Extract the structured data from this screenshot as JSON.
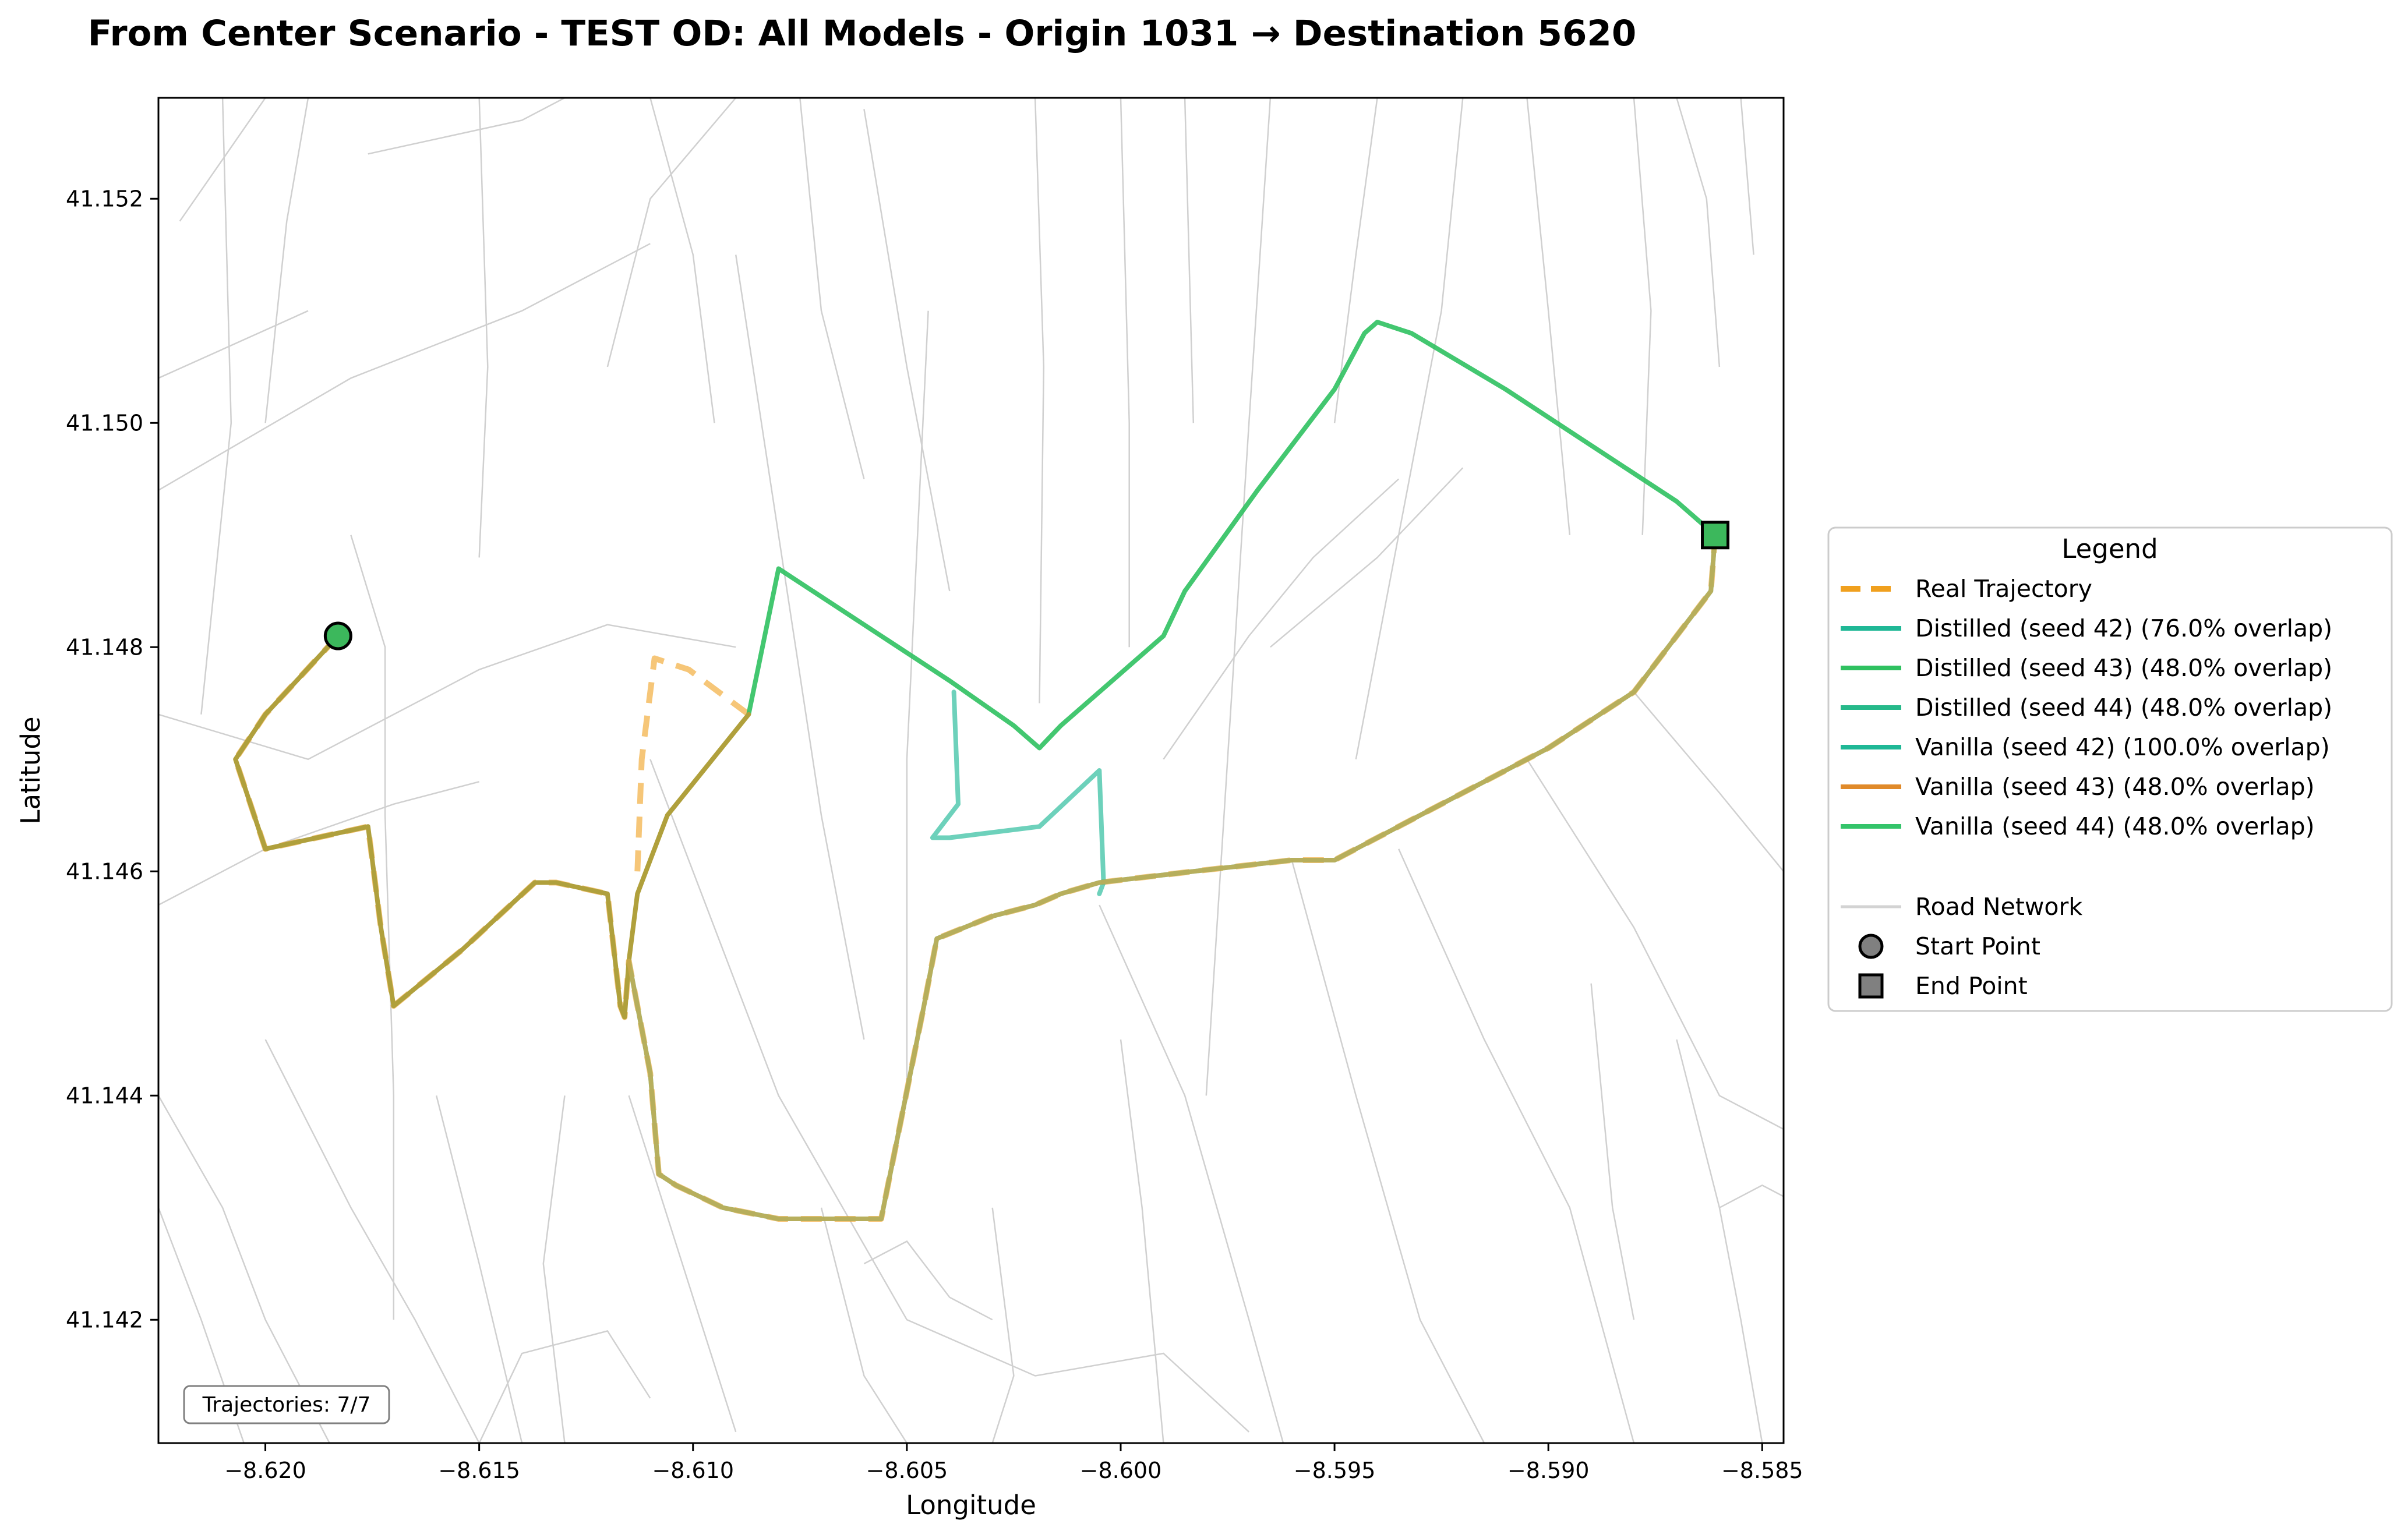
{
  "chart_data": {
    "type": "line",
    "title": "From Center Scenario - TEST OD: All Models - Origin 1031 → Destination 5620",
    "xlabel": "Longitude",
    "ylabel": "Latitude",
    "xlim": [
      -8.6225,
      -8.5845
    ],
    "ylim": [
      41.1409,
      41.1529
    ],
    "xticks": [
      -8.62,
      -8.615,
      -8.61,
      -8.605,
      -8.6,
      -8.595,
      -8.59,
      -8.585
    ],
    "xtick_labels": [
      "−8.620",
      "−8.615",
      "−8.610",
      "−8.605",
      "−8.600",
      "−8.595",
      "−8.590",
      "−8.585"
    ],
    "yticks": [
      41.142,
      41.144,
      41.146,
      41.148,
      41.15,
      41.152
    ],
    "ytick_labels": [
      "41.142",
      "41.144",
      "41.146",
      "41.148",
      "41.150",
      "41.152"
    ],
    "grid": false,
    "legend": {
      "title": "Legend",
      "placement": "right-outside",
      "entries": [
        {
          "label": "Real Trajectory",
          "color": "#f0a01e",
          "style": "dashed"
        },
        {
          "label": "Distilled (seed 42) (76.0% overlap)",
          "color": "#1fb896",
          "style": "solid"
        },
        {
          "label": "Distilled (seed 43) (48.0% overlap)",
          "color": "#2fc160",
          "style": "solid"
        },
        {
          "label": "Distilled (seed 44) (48.0% overlap)",
          "color": "#26b98a",
          "style": "solid"
        },
        {
          "label": "Vanilla (seed 42) (100.0% overlap)",
          "color": "#1fb896",
          "style": "solid"
        },
        {
          "label": "Vanilla (seed 43) (48.0% overlap)",
          "color": "#e08a2a",
          "style": "solid"
        },
        {
          "label": "Vanilla (seed 44) (48.0% overlap)",
          "color": "#34c46a",
          "style": "solid"
        },
        {
          "label": "Road Network",
          "color": "#d3d3d3",
          "style": "road"
        },
        {
          "label": "Start Point",
          "color": "#808080",
          "style": "circle"
        },
        {
          "label": "End Point",
          "color": "#808080",
          "style": "square"
        }
      ]
    },
    "annotation": "Trajectories: 7/7",
    "start_point": {
      "x": -8.6183,
      "y": 41.1481,
      "color": "#3cb85c"
    },
    "end_point": {
      "x": -8.5861,
      "y": 41.149,
      "color": "#3cb85c"
    },
    "series": [
      {
        "name": "Real Trajectory",
        "color": "#f0a01e",
        "style": "dashed",
        "width": 10,
        "opacity": 0.6,
        "x": [
          -8.6183,
          -8.62,
          -8.6207,
          -8.62,
          -8.6176,
          -8.6173,
          -8.617,
          -8.6154,
          -8.6137,
          -8.6132,
          -8.612,
          -8.6117,
          -8.6116,
          -8.6115,
          -8.611,
          -8.6108,
          -8.6104,
          -8.6093,
          -8.608,
          -8.6074,
          -8.6056,
          -8.6046,
          -8.6043,
          -8.603,
          -8.602,
          -8.6014,
          -8.6005,
          -8.5983,
          -8.596,
          -8.595,
          -8.594,
          -8.592,
          -8.59,
          -8.588,
          -8.5862,
          -8.5861
        ],
        "y": [
          41.1481,
          41.1474,
          41.147,
          41.1462,
          41.1464,
          41.1455,
          41.1448,
          41.1453,
          41.1459,
          41.1459,
          41.1458,
          41.1448,
          41.1447,
          41.1452,
          41.1442,
          41.1433,
          41.1432,
          41.143,
          41.1429,
          41.1429,
          41.1429,
          41.1448,
          41.1454,
          41.1456,
          41.1457,
          41.1458,
          41.1459,
          41.146,
          41.1461,
          41.1461,
          41.1463,
          41.1467,
          41.1471,
          41.1476,
          41.1485,
          41.149
        ]
      },
      {
        "name": "Real Trajectory (detour)",
        "color": "#f0a01e",
        "style": "dashed",
        "width": 10,
        "opacity": 0.6,
        "x": [
          -8.6113,
          -8.6112,
          -8.6109,
          -8.6101,
          -8.6087
        ],
        "y": [
          41.146,
          41.147,
          41.1479,
          41.1478,
          41.1474
        ]
      },
      {
        "name": "Distilled (seed 42) (76.0% overlap)",
        "color": "#1fb896",
        "style": "solid",
        "width": 8,
        "opacity": 0.65,
        "x": [
          -8.6039,
          -8.6038,
          -8.6042,
          -8.6044,
          -8.604,
          -8.6019,
          -8.6005,
          -8.6004,
          -8.6005
        ],
        "y": [
          41.1476,
          41.1466,
          41.1464,
          41.1463,
          41.1463,
          41.1464,
          41.1469,
          41.1459,
          41.1458
        ]
      },
      {
        "name": "Distilled (seed 43) (48.0% overlap)",
        "color": "#2fc160",
        "style": "solid",
        "width": 8,
        "opacity": 0.9,
        "x": [
          -8.6087,
          -8.608,
          -8.606,
          -8.604,
          -8.6025,
          -8.6019,
          -8.6014,
          -8.599,
          -8.5985,
          -8.5968,
          -8.595,
          -8.5943,
          -8.594,
          -8.5932,
          -8.591,
          -8.589,
          -8.587,
          -8.5861
        ],
        "y": [
          41.1474,
          41.1487,
          41.1482,
          41.1477,
          41.1473,
          41.1471,
          41.1473,
          41.1481,
          41.1485,
          41.1494,
          41.1503,
          41.1508,
          41.1509,
          41.1508,
          41.1503,
          41.1498,
          41.1493,
          41.149
        ]
      },
      {
        "name": "Vanilla (seed 42) (100.0% overlap)",
        "color": "#3fd0c0",
        "style": "solid",
        "width": 8,
        "opacity": 0.9,
        "x": [
          -8.6115,
          -8.611,
          -8.6108,
          -8.6104,
          -8.6093,
          -8.608,
          -8.6074,
          -8.6056,
          -8.6046,
          -8.6043,
          -8.603,
          -8.602,
          -8.6014,
          -8.6005,
          -8.5983,
          -8.596,
          -8.595,
          -8.594,
          -8.592,
          -8.59,
          -8.588,
          -8.5862,
          -8.5861
        ],
        "y": [
          41.1452,
          41.1442,
          41.1433,
          41.1432,
          41.143,
          41.1429,
          41.1429,
          41.1429,
          41.1448,
          41.1454,
          41.1456,
          41.1457,
          41.1458,
          41.1459,
          41.146,
          41.1461,
          41.1461,
          41.1463,
          41.1467,
          41.1471,
          41.1476,
          41.1485,
          41.149
        ]
      },
      {
        "name": "Vanilla (seed 43) (48.0% overlap)",
        "color": "#b0a03c",
        "style": "solid",
        "width": 8,
        "opacity": 1,
        "x": [
          -8.6183,
          -8.62,
          -8.6207,
          -8.62,
          -8.6176,
          -8.6173,
          -8.617,
          -8.6154,
          -8.6137,
          -8.6132,
          -8.612,
          -8.6117,
          -8.6116,
          -8.6115,
          -8.6113,
          -8.611,
          -8.6106,
          -8.6087
        ],
        "y": [
          41.1481,
          41.1474,
          41.147,
          41.1462,
          41.1464,
          41.1455,
          41.1448,
          41.1453,
          41.1459,
          41.1459,
          41.1458,
          41.1448,
          41.1447,
          41.1452,
          41.1458,
          41.1461,
          41.1465,
          41.1474
        ]
      },
      {
        "name": "Vanilla (seed 43) overlay",
        "color": "#c9a84a",
        "style": "solid",
        "width": 8,
        "opacity": 0.85,
        "x": [
          -8.6115,
          -8.611,
          -8.6108,
          -8.6104,
          -8.6093,
          -8.608,
          -8.6074,
          -8.6056,
          -8.6046,
          -8.6043,
          -8.603,
          -8.602,
          -8.6014,
          -8.6005,
          -8.5983,
          -8.596,
          -8.595,
          -8.594,
          -8.592,
          -8.59,
          -8.588,
          -8.5862,
          -8.5861
        ],
        "y": [
          41.1452,
          41.1442,
          41.1433,
          41.1432,
          41.143,
          41.1429,
          41.1429,
          41.1429,
          41.1448,
          41.1454,
          41.1456,
          41.1457,
          41.1458,
          41.1459,
          41.146,
          41.1461,
          41.1461,
          41.1463,
          41.1467,
          41.1471,
          41.1476,
          41.1485,
          41.149
        ]
      }
    ],
    "roads": [
      [
        [
          -8.6225,
          41.1474
        ],
        [
          -8.619,
          41.147
        ],
        [
          -8.615,
          41.1478
        ],
        [
          -8.612,
          41.1482
        ],
        [
          -8.609,
          41.148
        ]
      ],
      [
        [
          -8.6225,
          41.1457
        ],
        [
          -8.62,
          41.1462
        ],
        [
          -8.617,
          41.1466
        ],
        [
          -8.615,
          41.1468
        ]
      ],
      [
        [
          -8.6225,
          41.1494
        ],
        [
          -8.618,
          41.1504
        ],
        [
          -8.614,
          41.151
        ],
        [
          -8.611,
          41.1516
        ]
      ],
      [
        [
          -8.6225,
          41.1504
        ],
        [
          -8.619,
          41.151
        ]
      ],
      [
        [
          -8.622,
          41.1518
        ],
        [
          -8.62,
          41.1529
        ]
      ],
      [
        [
          -8.621,
          41.1529
        ],
        [
          -8.6208,
          41.15
        ],
        [
          -8.6215,
          41.1474
        ]
      ],
      [
        [
          -8.619,
          41.1529
        ],
        [
          -8.6195,
          41.1518
        ],
        [
          -8.62,
          41.15
        ]
      ],
      [
        [
          -8.618,
          41.149
        ],
        [
          -8.6172,
          41.148
        ],
        [
          -8.6172,
          41.1465
        ],
        [
          -8.617,
          41.144
        ],
        [
          -8.617,
          41.142
        ]
      ],
      [
        [
          -8.615,
          41.1529
        ],
        [
          -8.6148,
          41.1505
        ],
        [
          -8.615,
          41.1488
        ]
      ],
      [
        [
          -8.613,
          41.1529
        ],
        [
          -8.614,
          41.1527
        ],
        [
          -8.6176,
          41.1524
        ]
      ],
      [
        [
          -8.612,
          41.1505
        ],
        [
          -8.611,
          41.152
        ],
        [
          -8.609,
          41.1529
        ]
      ],
      [
        [
          -8.609,
          41.1515
        ],
        [
          -8.608,
          41.149
        ],
        [
          -8.607,
          41.1465
        ],
        [
          -8.606,
          41.1445
        ]
      ],
      [
        [
          -8.611,
          41.1529
        ],
        [
          -8.61,
          41.1515
        ],
        [
          -8.6095,
          41.15
        ]
      ],
      [
        [
          -8.6075,
          41.1529
        ],
        [
          -8.607,
          41.151
        ],
        [
          -8.606,
          41.1495
        ]
      ],
      [
        [
          -8.606,
          41.1528
        ],
        [
          -8.605,
          41.1505
        ],
        [
          -8.604,
          41.1485
        ]
      ],
      [
        [
          -8.6045,
          41.151
        ],
        [
          -8.605,
          41.147
        ],
        [
          -8.605,
          41.144
        ]
      ],
      [
        [
          -8.602,
          41.1529
        ],
        [
          -8.6018,
          41.1505
        ],
        [
          -8.6019,
          41.1475
        ]
      ],
      [
        [
          -8.6,
          41.1529
        ],
        [
          -8.5998,
          41.15
        ],
        [
          -8.5998,
          41.148
        ]
      ],
      [
        [
          -8.5985,
          41.1529
        ],
        [
          -8.5983,
          41.15
        ]
      ],
      [
        [
          -8.5965,
          41.1529
        ],
        [
          -8.597,
          41.15
        ],
        [
          -8.5975,
          41.147
        ],
        [
          -8.598,
          41.144
        ]
      ],
      [
        [
          -8.594,
          41.1529
        ],
        [
          -8.5945,
          41.1515
        ],
        [
          -8.595,
          41.15
        ]
      ],
      [
        [
          -8.592,
          41.1529
        ],
        [
          -8.5925,
          41.151
        ],
        [
          -8.5935,
          41.149
        ],
        [
          -8.5945,
          41.147
        ]
      ],
      [
        [
          -8.5905,
          41.1529
        ],
        [
          -8.59,
          41.151
        ],
        [
          -8.5895,
          41.149
        ]
      ],
      [
        [
          -8.588,
          41.1529
        ],
        [
          -8.5876,
          41.151
        ],
        [
          -8.5878,
          41.149
        ]
      ],
      [
        [
          -8.587,
          41.1529
        ],
        [
          -8.5863,
          41.152
        ],
        [
          -8.586,
          41.1505
        ]
      ],
      [
        [
          -8.5855,
          41.1529
        ],
        [
          -8.5852,
          41.1515
        ]
      ],
      [
        [
          -8.599,
          41.147
        ],
        [
          -8.597,
          41.1481
        ],
        [
          -8.5955,
          41.1488
        ],
        [
          -8.5935,
          41.1495
        ]
      ],
      [
        [
          -8.5965,
          41.148
        ],
        [
          -8.594,
          41.1488
        ],
        [
          -8.592,
          41.1496
        ]
      ],
      [
        [
          -8.6225,
          41.144
        ],
        [
          -8.621,
          41.143
        ],
        [
          -8.62,
          41.142
        ],
        [
          -8.6185,
          41.1409
        ]
      ],
      [
        [
          -8.62,
          41.1445
        ],
        [
          -8.618,
          41.143
        ],
        [
          -8.6165,
          41.142
        ],
        [
          -8.615,
          41.1409
        ]
      ],
      [
        [
          -8.616,
          41.144
        ],
        [
          -8.615,
          41.1425
        ],
        [
          -8.614,
          41.1409
        ]
      ],
      [
        [
          -8.613,
          41.144
        ],
        [
          -8.6135,
          41.1425
        ],
        [
          -8.613,
          41.1409
        ]
      ],
      [
        [
          -8.6115,
          41.144
        ],
        [
          -8.609,
          41.141
        ]
      ],
      [
        [
          -8.611,
          41.147
        ],
        [
          -8.608,
          41.144
        ],
        [
          -8.605,
          41.142
        ],
        [
          -8.602,
          41.1415
        ],
        [
          -8.599,
          41.1417
        ],
        [
          -8.597,
          41.141
        ]
      ],
      [
        [
          -8.607,
          41.143
        ],
        [
          -8.606,
          41.1415
        ],
        [
          -8.605,
          41.1409
        ]
      ],
      [
        [
          -8.603,
          41.143
        ],
        [
          -8.6025,
          41.1415
        ],
        [
          -8.603,
          41.1409
        ]
      ],
      [
        [
          -8.6,
          41.1445
        ],
        [
          -8.5995,
          41.143
        ],
        [
          -8.599,
          41.1409
        ]
      ],
      [
        [
          -8.6005,
          41.1457
        ],
        [
          -8.5985,
          41.144
        ],
        [
          -8.597,
          41.142
        ],
        [
          -8.5962,
          41.1409
        ]
      ],
      [
        [
          -8.596,
          41.1461
        ],
        [
          -8.5945,
          41.144
        ],
        [
          -8.593,
          41.142
        ],
        [
          -8.5915,
          41.1409
        ]
      ],
      [
        [
          -8.5935,
          41.1462
        ],
        [
          -8.5915,
          41.1445
        ],
        [
          -8.5895,
          41.143
        ],
        [
          -8.588,
          41.1409
        ]
      ],
      [
        [
          -8.5905,
          41.147
        ],
        [
          -8.588,
          41.1455
        ],
        [
          -8.586,
          41.144
        ],
        [
          -8.5845,
          41.1437
        ]
      ],
      [
        [
          -8.588,
          41.1476
        ],
        [
          -8.586,
          41.1467
        ],
        [
          -8.5845,
          41.146
        ]
      ],
      [
        [
          -8.587,
          41.1445
        ],
        [
          -8.586,
          41.143
        ],
        [
          -8.5855,
          41.142
        ],
        [
          -8.585,
          41.1409
        ]
      ],
      [
        [
          -8.586,
          41.143
        ],
        [
          -8.585,
          41.1432
        ],
        [
          -8.5845,
          41.1431
        ]
      ],
      [
        [
          -8.589,
          41.145
        ],
        [
          -8.5885,
          41.143
        ],
        [
          -8.588,
          41.142
        ]
      ],
      [
        [
          -8.6225,
          41.143
        ],
        [
          -8.6215,
          41.142
        ],
        [
          -8.6205,
          41.1409
        ]
      ],
      [
        [
          -8.615,
          41.1409
        ],
        [
          -8.614,
          41.1417
        ],
        [
          -8.612,
          41.1419
        ],
        [
          -8.611,
          41.1413
        ]
      ],
      [
        [
          -8.606,
          41.1425
        ],
        [
          -8.605,
          41.1427
        ],
        [
          -8.604,
          41.1422
        ],
        [
          -8.603,
          41.142
        ]
      ]
    ]
  }
}
